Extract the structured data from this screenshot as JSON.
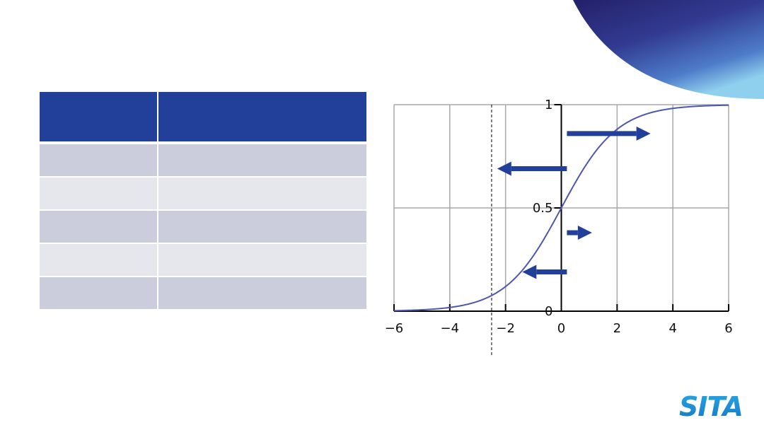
{
  "table": {
    "header": [
      "",
      ""
    ],
    "rows": [
      [
        "",
        ""
      ],
      [
        "",
        ""
      ],
      [
        "",
        ""
      ],
      [
        "",
        ""
      ],
      [
        "",
        ""
      ]
    ]
  },
  "chart_data": {
    "type": "line",
    "title": "",
    "xlabel": "",
    "ylabel": "",
    "function": "logistic",
    "xlim": [
      -6,
      6
    ],
    "ylim": [
      0,
      1
    ],
    "x_ticks": [
      -6,
      -4,
      -2,
      0,
      2,
      4,
      6
    ],
    "x_tick_labels": [
      "−6",
      "−4",
      "−2",
      "0",
      "2",
      "4",
      "6"
    ],
    "y_ticks": [
      0,
      0.5,
      1
    ],
    "y_tick_labels": [
      "0",
      "0.5",
      "1"
    ],
    "grid": true,
    "series": [
      {
        "x": [
          -6,
          -5,
          -4,
          -3,
          -2,
          -1,
          0,
          1,
          2,
          3,
          4,
          5,
          6
        ],
        "y": [
          0.002,
          0.007,
          0.018,
          0.047,
          0.119,
          0.269,
          0.5,
          0.731,
          0.881,
          0.953,
          0.982,
          0.993,
          0.998
        ],
        "color": "#4d57b0"
      }
    ],
    "threshold_x": -2.5,
    "annotations": [
      {
        "type": "arrow",
        "direction": "right",
        "from": [
          0.2,
          0.86
        ],
        "to": [
          3.2,
          0.86
        ]
      },
      {
        "type": "arrow",
        "direction": "left",
        "from": [
          0.2,
          0.69
        ],
        "to": [
          -2.3,
          0.69
        ]
      },
      {
        "type": "arrow",
        "direction": "right",
        "from": [
          0.2,
          0.38
        ],
        "to": [
          1.1,
          0.38
        ]
      },
      {
        "type": "arrow",
        "direction": "left",
        "from": [
          0.2,
          0.19
        ],
        "to": [
          -1.4,
          0.19
        ]
      }
    ],
    "arrow_color": "#22409a"
  },
  "colors": {
    "brand_blue": "#22409a",
    "curve": "#4d57b0",
    "logo_blue": "#1a8fd1"
  },
  "logo": {
    "text": "SITA",
    "icon": "sita-logo"
  }
}
